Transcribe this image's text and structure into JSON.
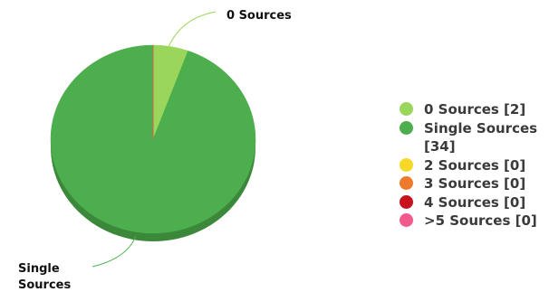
{
  "chart_data": {
    "type": "pie",
    "title": "",
    "categories": [
      "0 Sources",
      "Single Sources",
      "2 Sources",
      "3 Sources",
      "4 Sources",
      ">5 Sources"
    ],
    "values": [
      2,
      34,
      0,
      0,
      0,
      0
    ],
    "colors": [
      "#99d65b",
      "#4cae4c",
      "#f6d826",
      "#f07a2b",
      "#c9101e",
      "#f25a8c"
    ],
    "slice_labels": [
      {
        "category": "0 Sources",
        "text": "0 Sources"
      },
      {
        "category": "Single Sources",
        "text": "Single Sources"
      }
    ],
    "legend": {
      "placement": "right",
      "entries": [
        "0 Sources [2]",
        "Single Sources [34]",
        "2 Sources [0]",
        "3 Sources [0]",
        "4 Sources [0]",
        ">5 Sources [0]"
      ]
    }
  }
}
